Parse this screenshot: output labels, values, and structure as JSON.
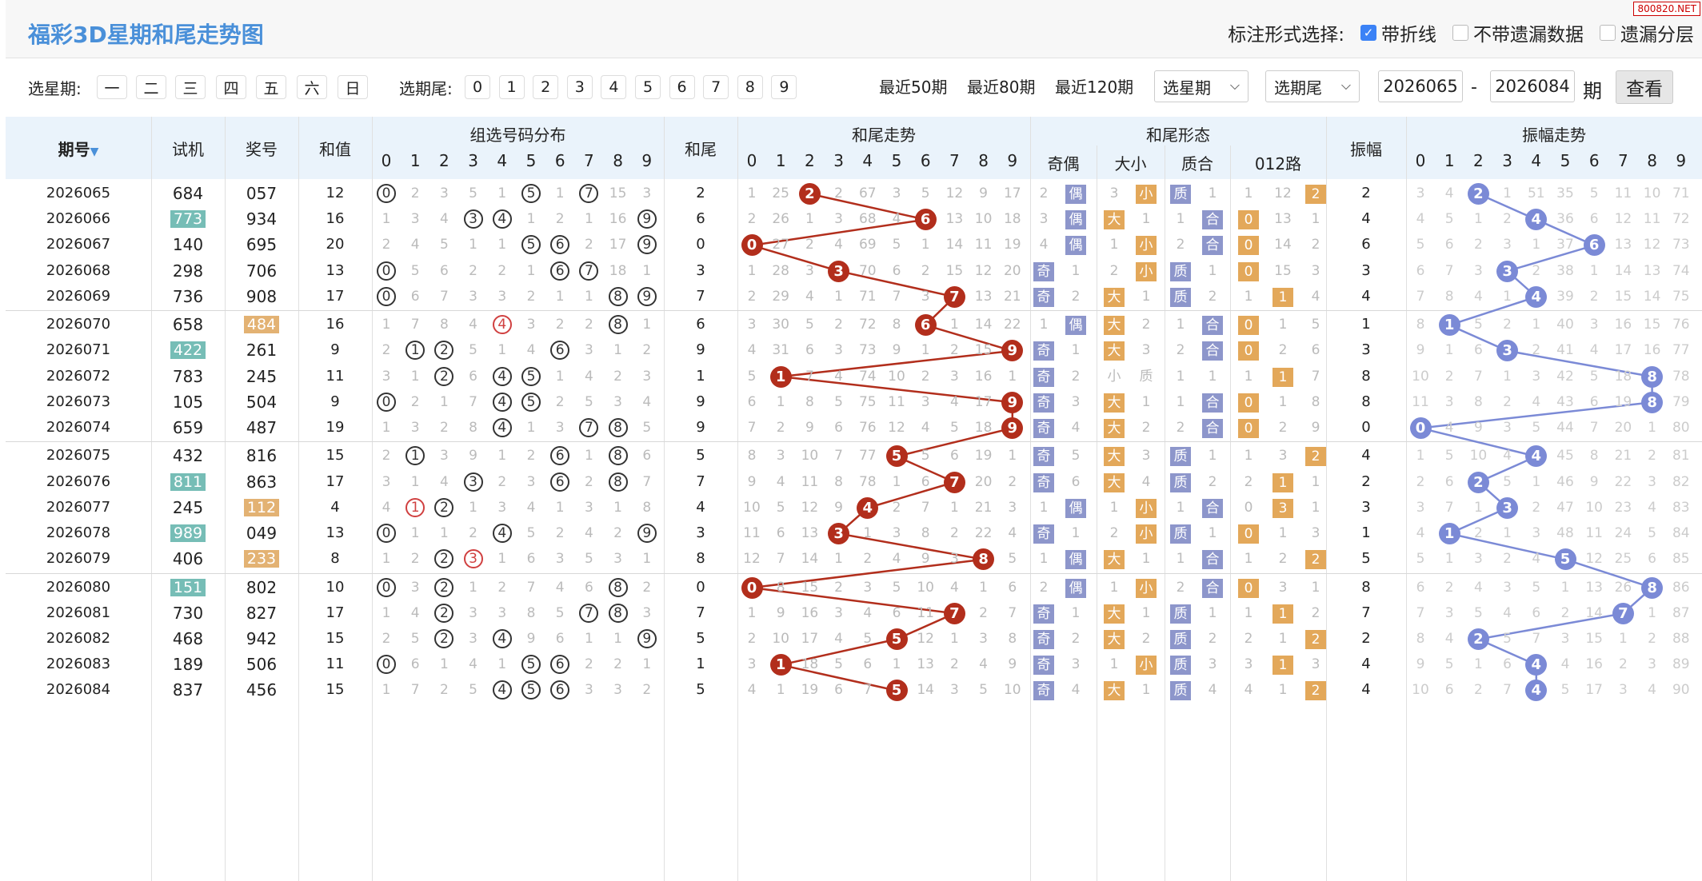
{
  "header": {
    "title": "福彩3D星期和尾走势图",
    "watermark": "800820.NET",
    "mark_label": "标注形式选择:",
    "options": [
      {
        "label": "带折线",
        "checked": true
      },
      {
        "label": "不带遗漏数据",
        "checked": false
      },
      {
        "label": "遗漏分层",
        "checked": false
      }
    ]
  },
  "filter": {
    "week_label": "选星期:",
    "weekdays": [
      "一",
      "二",
      "三",
      "四",
      "五",
      "六",
      "日"
    ],
    "tail_label": "选期尾:",
    "tails": [
      "0",
      "1",
      "2",
      "3",
      "4",
      "5",
      "6",
      "7",
      "8",
      "9"
    ],
    "recent": [
      "最近50期",
      "最近80期",
      "最近120期"
    ],
    "week_select": "选星期",
    "tail_select": "选期尾",
    "from": "2026065",
    "dash": "-",
    "to": "2026084",
    "period_label": "期",
    "query_label": "查看"
  },
  "columns": {
    "issue": "期号",
    "trial": "试机",
    "prize": "奖号",
    "sum": "和值",
    "group": "组选号码分布",
    "tail": "和尾",
    "trend": "和尾走势",
    "shape": "和尾形态",
    "shape_sub": [
      "奇偶",
      "大小",
      "质合",
      "012路"
    ],
    "amp": "振幅",
    "amp_trend": "振幅走势",
    "digits": [
      "0",
      "1",
      "2",
      "3",
      "4",
      "5",
      "6",
      "7",
      "8",
      "9"
    ]
  },
  "colors": {
    "accent": "#4a90d9",
    "red_ball": "#b22e1c",
    "blue_ball": "#7b8ad6",
    "tag_blue": "#8d96cb",
    "tag_orange": "#e3a85a"
  },
  "rows": [
    {
      "issue": "2026065",
      "trial": "684",
      "prize": "057",
      "sum": "12",
      "tail": "2",
      "amp": "2",
      "th": "",
      "ph": "",
      "g": [
        "0",
        "2",
        "3",
        "5",
        "1",
        "5",
        "1",
        "7",
        "15",
        "3"
      ],
      "gh": [
        0,
        5,
        7
      ],
      "gr": [],
      "t": [
        "1",
        "25",
        "2",
        "2",
        "67",
        "3",
        "5",
        "12",
        "9",
        "17"
      ],
      "s": [
        "2",
        "偶",
        "3",
        "小",
        "质",
        "1",
        "1",
        "12",
        "2"
      ],
      "a": [
        "3",
        "4",
        "2",
        "1",
        "51",
        "35",
        "5",
        "11",
        "10",
        "71"
      ]
    },
    {
      "issue": "2026066",
      "trial": "773",
      "prize": "934",
      "sum": "16",
      "tail": "6",
      "amp": "4",
      "th": "teal",
      "ph": "",
      "g": [
        "1",
        "3",
        "4",
        "3",
        "4",
        "1",
        "2",
        "1",
        "16",
        "9"
      ],
      "gh": [
        3,
        4,
        9
      ],
      "gr": [],
      "t": [
        "2",
        "26",
        "1",
        "3",
        "68",
        "4",
        "6",
        "13",
        "10",
        "18"
      ],
      "s": [
        "3",
        "偶",
        "大",
        "1",
        "1",
        "合",
        "0",
        "13",
        "1"
      ],
      "a": [
        "4",
        "5",
        "1",
        "2",
        "4",
        "36",
        "6",
        "12",
        "11",
        "72"
      ]
    },
    {
      "issue": "2026067",
      "trial": "140",
      "prize": "695",
      "sum": "20",
      "tail": "0",
      "amp": "6",
      "th": "",
      "ph": "",
      "g": [
        "2",
        "4",
        "5",
        "1",
        "1",
        "5",
        "6",
        "2",
        "17",
        "9"
      ],
      "gh": [
        5,
        6,
        9
      ],
      "gr": [],
      "t": [
        "0",
        "27",
        "2",
        "4",
        "69",
        "5",
        "1",
        "14",
        "11",
        "19"
      ],
      "s": [
        "4",
        "偶",
        "1",
        "小",
        "2",
        "合",
        "0",
        "14",
        "2"
      ],
      "a": [
        "5",
        "6",
        "2",
        "3",
        "1",
        "37",
        "6",
        "13",
        "12",
        "73"
      ]
    },
    {
      "issue": "2026068",
      "trial": "298",
      "prize": "706",
      "sum": "13",
      "tail": "3",
      "amp": "3",
      "th": "",
      "ph": "",
      "g": [
        "0",
        "5",
        "6",
        "2",
        "2",
        "1",
        "6",
        "7",
        "18",
        "1"
      ],
      "gh": [
        0,
        6,
        7
      ],
      "gr": [],
      "t": [
        "1",
        "28",
        "3",
        "3",
        "70",
        "6",
        "2",
        "15",
        "12",
        "20"
      ],
      "s": [
        "奇",
        "1",
        "2",
        "小",
        "质",
        "1",
        "0",
        "15",
        "3"
      ],
      "a": [
        "6",
        "7",
        "3",
        "3",
        "2",
        "38",
        "1",
        "14",
        "13",
        "74"
      ]
    },
    {
      "issue": "2026069",
      "trial": "736",
      "prize": "908",
      "sum": "17",
      "tail": "7",
      "amp": "4",
      "th": "",
      "ph": "",
      "g": [
        "0",
        "6",
        "7",
        "3",
        "3",
        "2",
        "1",
        "1",
        "8",
        "9"
      ],
      "gh": [
        0,
        8,
        9
      ],
      "gr": [],
      "t": [
        "2",
        "29",
        "4",
        "1",
        "71",
        "7",
        "3",
        "7",
        "13",
        "21"
      ],
      "s": [
        "奇",
        "2",
        "大",
        "1",
        "质",
        "2",
        "1",
        "1",
        "4"
      ],
      "a": [
        "7",
        "8",
        "4",
        "1",
        "4",
        "39",
        "2",
        "15",
        "14",
        "75"
      ]
    },
    {
      "issue": "2026070",
      "trial": "658",
      "prize": "484",
      "sum": "16",
      "tail": "6",
      "amp": "1",
      "th": "",
      "ph": "orange",
      "g": [
        "1",
        "7",
        "8",
        "4",
        "4",
        "3",
        "2",
        "2",
        "8",
        "1"
      ],
      "gh": [
        8
      ],
      "gr": [
        4
      ],
      "t": [
        "3",
        "30",
        "5",
        "2",
        "72",
        "8",
        "6",
        "1",
        "14",
        "22"
      ],
      "s": [
        "1",
        "偶",
        "大",
        "2",
        "1",
        "合",
        "0",
        "1",
        "5"
      ],
      "a": [
        "8",
        "1",
        "5",
        "2",
        "1",
        "40",
        "3",
        "16",
        "15",
        "76"
      ]
    },
    {
      "issue": "2026071",
      "trial": "422",
      "prize": "261",
      "sum": "9",
      "tail": "9",
      "amp": "3",
      "th": "teal",
      "ph": "",
      "g": [
        "2",
        "1",
        "2",
        "5",
        "1",
        "4",
        "6",
        "3",
        "1",
        "2"
      ],
      "gh": [
        1,
        2,
        6
      ],
      "gr": [],
      "t": [
        "4",
        "31",
        "6",
        "3",
        "73",
        "9",
        "1",
        "2",
        "15",
        "9"
      ],
      "s": [
        "奇",
        "1",
        "大",
        "3",
        "2",
        "合",
        "0",
        "2",
        "6"
      ],
      "a": [
        "9",
        "1",
        "6",
        "3",
        "2",
        "41",
        "4",
        "17",
        "16",
        "77"
      ]
    },
    {
      "issue": "2026072",
      "trial": "783",
      "prize": "245",
      "sum": "11",
      "tail": "1",
      "amp": "8",
      "th": "",
      "ph": "",
      "g": [
        "3",
        "1",
        "2",
        "6",
        "4",
        "5",
        "1",
        "4",
        "2",
        "3"
      ],
      "gh": [
        2,
        4,
        5
      ],
      "gr": [],
      "t": [
        "5",
        "1",
        "7",
        "4",
        "74",
        "10",
        "2",
        "3",
        "16",
        "1"
      ],
      "s": [
        "奇",
        "2",
        "小",
        "质",
        "1",
        "1",
        "1",
        "1",
        "7"
      ],
      "a": [
        "10",
        "2",
        "7",
        "1",
        "3",
        "42",
        "5",
        "18",
        "8",
        "78"
      ]
    },
    {
      "issue": "2026073",
      "trial": "105",
      "prize": "504",
      "sum": "9",
      "tail": "9",
      "amp": "8",
      "th": "",
      "ph": "",
      "g": [
        "0",
        "2",
        "1",
        "7",
        "4",
        "5",
        "2",
        "5",
        "3",
        "4"
      ],
      "gh": [
        0,
        4,
        5
      ],
      "gr": [],
      "t": [
        "6",
        "1",
        "8",
        "5",
        "75",
        "11",
        "3",
        "4",
        "17",
        "9"
      ],
      "s": [
        "奇",
        "3",
        "大",
        "1",
        "1",
        "合",
        "0",
        "1",
        "8"
      ],
      "a": [
        "11",
        "3",
        "8",
        "2",
        "4",
        "43",
        "6",
        "19",
        "8",
        "79"
      ]
    },
    {
      "issue": "2026074",
      "trial": "659",
      "prize": "487",
      "sum": "19",
      "tail": "9",
      "amp": "0",
      "th": "",
      "ph": "",
      "g": [
        "1",
        "3",
        "2",
        "8",
        "4",
        "1",
        "3",
        "7",
        "8",
        "5"
      ],
      "gh": [
        4,
        7,
        8
      ],
      "gr": [],
      "t": [
        "7",
        "2",
        "9",
        "6",
        "76",
        "12",
        "4",
        "5",
        "18",
        "9"
      ],
      "s": [
        "奇",
        "4",
        "大",
        "2",
        "2",
        "合",
        "0",
        "2",
        "9"
      ],
      "a": [
        "0",
        "4",
        "9",
        "3",
        "5",
        "44",
        "7",
        "20",
        "1",
        "80"
      ]
    },
    {
      "issue": "2026075",
      "trial": "432",
      "prize": "816",
      "sum": "15",
      "tail": "5",
      "amp": "4",
      "th": "",
      "ph": "",
      "g": [
        "2",
        "1",
        "3",
        "9",
        "1",
        "2",
        "6",
        "1",
        "8",
        "6"
      ],
      "gh": [
        1,
        6,
        8
      ],
      "gr": [],
      "t": [
        "8",
        "3",
        "10",
        "7",
        "77",
        "5",
        "5",
        "6",
        "19",
        "1"
      ],
      "s": [
        "奇",
        "5",
        "大",
        "3",
        "质",
        "1",
        "1",
        "3",
        "2"
      ],
      "a": [
        "1",
        "5",
        "10",
        "4",
        "4",
        "45",
        "8",
        "21",
        "2",
        "81"
      ]
    },
    {
      "issue": "2026076",
      "trial": "811",
      "prize": "863",
      "sum": "17",
      "tail": "7",
      "amp": "2",
      "th": "teal",
      "ph": "",
      "g": [
        "3",
        "1",
        "4",
        "3",
        "2",
        "3",
        "6",
        "2",
        "8",
        "7"
      ],
      "gh": [
        3,
        6,
        8
      ],
      "gr": [],
      "t": [
        "9",
        "4",
        "11",
        "8",
        "78",
        "1",
        "6",
        "7",
        "20",
        "2"
      ],
      "s": [
        "奇",
        "6",
        "大",
        "4",
        "质",
        "2",
        "2",
        "1",
        "1"
      ],
      "a": [
        "2",
        "6",
        "2",
        "5",
        "1",
        "46",
        "9",
        "22",
        "3",
        "82"
      ]
    },
    {
      "issue": "2026077",
      "trial": "245",
      "prize": "112",
      "sum": "4",
      "tail": "4",
      "amp": "3",
      "th": "",
      "ph": "orange",
      "g": [
        "4",
        "1",
        "2",
        "1",
        "3",
        "4",
        "1",
        "3",
        "1",
        "8"
      ],
      "gh": [
        2
      ],
      "gr": [
        1
      ],
      "t": [
        "10",
        "5",
        "12",
        "9",
        "4",
        "2",
        "7",
        "1",
        "21",
        "3"
      ],
      "s": [
        "1",
        "偶",
        "1",
        "小",
        "1",
        "合",
        "0",
        "3",
        "1"
      ],
      "a": [
        "3",
        "7",
        "1",
        "3",
        "2",
        "47",
        "10",
        "23",
        "4",
        "83"
      ]
    },
    {
      "issue": "2026078",
      "trial": "989",
      "prize": "049",
      "sum": "13",
      "tail": "3",
      "amp": "1",
      "th": "teal",
      "ph": "",
      "g": [
        "0",
        "1",
        "1",
        "2",
        "4",
        "5",
        "2",
        "4",
        "2",
        "9"
      ],
      "gh": [
        0,
        4,
        9
      ],
      "gr": [],
      "t": [
        "11",
        "6",
        "13",
        "3",
        "1",
        "3",
        "8",
        "2",
        "22",
        "4"
      ],
      "s": [
        "奇",
        "1",
        "2",
        "小",
        "质",
        "1",
        "0",
        "1",
        "3"
      ],
      "a": [
        "4",
        "1",
        "2",
        "1",
        "3",
        "48",
        "11",
        "24",
        "5",
        "84"
      ]
    },
    {
      "issue": "2026079",
      "trial": "406",
      "prize": "233",
      "sum": "8",
      "tail": "8",
      "amp": "5",
      "th": "",
      "ph": "orange",
      "g": [
        "1",
        "2",
        "2",
        "3",
        "1",
        "6",
        "3",
        "5",
        "3",
        "1"
      ],
      "gh": [
        2
      ],
      "gr": [
        3
      ],
      "t": [
        "12",
        "7",
        "14",
        "1",
        "2",
        "4",
        "9",
        "3",
        "8",
        "5"
      ],
      "s": [
        "1",
        "偶",
        "大",
        "1",
        "1",
        "合",
        "1",
        "2",
        "2"
      ],
      "a": [
        "5",
        "1",
        "3",
        "2",
        "4",
        "5",
        "12",
        "25",
        "6",
        "85"
      ]
    },
    {
      "issue": "2026080",
      "trial": "151",
      "prize": "802",
      "sum": "10",
      "tail": "0",
      "amp": "8",
      "th": "teal",
      "ph": "",
      "g": [
        "0",
        "3",
        "2",
        "1",
        "2",
        "7",
        "4",
        "6",
        "8",
        "2"
      ],
      "gh": [
        0,
        2,
        8
      ],
      "gr": [],
      "t": [
        "0",
        "8",
        "15",
        "2",
        "3",
        "5",
        "10",
        "4",
        "1",
        "6"
      ],
      "s": [
        "2",
        "偶",
        "1",
        "小",
        "2",
        "合",
        "0",
        "3",
        "1"
      ],
      "a": [
        "6",
        "2",
        "4",
        "3",
        "5",
        "1",
        "13",
        "26",
        "8",
        "86"
      ]
    },
    {
      "issue": "2026081",
      "trial": "730",
      "prize": "827",
      "sum": "17",
      "tail": "7",
      "amp": "7",
      "th": "",
      "ph": "",
      "g": [
        "1",
        "4",
        "2",
        "3",
        "3",
        "8",
        "5",
        "7",
        "8",
        "3"
      ],
      "gh": [
        2,
        7,
        8
      ],
      "gr": [],
      "t": [
        "1",
        "9",
        "16",
        "3",
        "4",
        "6",
        "11",
        "7",
        "2",
        "7"
      ],
      "s": [
        "奇",
        "1",
        "大",
        "1",
        "质",
        "1",
        "1",
        "1",
        "2"
      ],
      "a": [
        "7",
        "3",
        "5",
        "4",
        "6",
        "2",
        "14",
        "7",
        "1",
        "87"
      ]
    },
    {
      "issue": "2026082",
      "trial": "468",
      "prize": "942",
      "sum": "15",
      "tail": "5",
      "amp": "2",
      "th": "",
      "ph": "",
      "g": [
        "2",
        "5",
        "2",
        "3",
        "4",
        "9",
        "6",
        "1",
        "1",
        "9"
      ],
      "gh": [
        2,
        4,
        9
      ],
      "gr": [],
      "t": [
        "2",
        "10",
        "17",
        "4",
        "5",
        "5",
        "12",
        "1",
        "3",
        "8"
      ],
      "s": [
        "奇",
        "2",
        "大",
        "2",
        "质",
        "2",
        "2",
        "1",
        "2"
      ],
      "a": [
        "8",
        "4",
        "2",
        "5",
        "7",
        "3",
        "15",
        "1",
        "2",
        "88"
      ]
    },
    {
      "issue": "2026083",
      "trial": "189",
      "prize": "506",
      "sum": "11",
      "tail": "1",
      "amp": "4",
      "th": "",
      "ph": "",
      "g": [
        "0",
        "6",
        "1",
        "4",
        "1",
        "5",
        "6",
        "2",
        "2",
        "1"
      ],
      "gh": [
        0,
        5,
        6
      ],
      "gr": [],
      "t": [
        "3",
        "1",
        "18",
        "5",
        "6",
        "1",
        "13",
        "2",
        "4",
        "9"
      ],
      "s": [
        "奇",
        "3",
        "1",
        "小",
        "质",
        "3",
        "3",
        "1",
        "3"
      ],
      "a": [
        "9",
        "5",
        "1",
        "6",
        "4",
        "4",
        "16",
        "2",
        "3",
        "89"
      ]
    },
    {
      "issue": "2026084",
      "trial": "837",
      "prize": "456",
      "sum": "15",
      "tail": "5",
      "amp": "4",
      "th": "",
      "ph": "",
      "g": [
        "1",
        "7",
        "2",
        "5",
        "4",
        "5",
        "6",
        "3",
        "3",
        "2"
      ],
      "gh": [
        4,
        5,
        6
      ],
      "gr": [],
      "t": [
        "4",
        "1",
        "19",
        "6",
        "7",
        "5",
        "14",
        "3",
        "5",
        "10"
      ],
      "s": [
        "奇",
        "4",
        "大",
        "1",
        "质",
        "4",
        "4",
        "1",
        "2"
      ],
      "a": [
        "10",
        "6",
        "2",
        "7",
        "4",
        "5",
        "17",
        "3",
        "4",
        "90"
      ]
    }
  ]
}
